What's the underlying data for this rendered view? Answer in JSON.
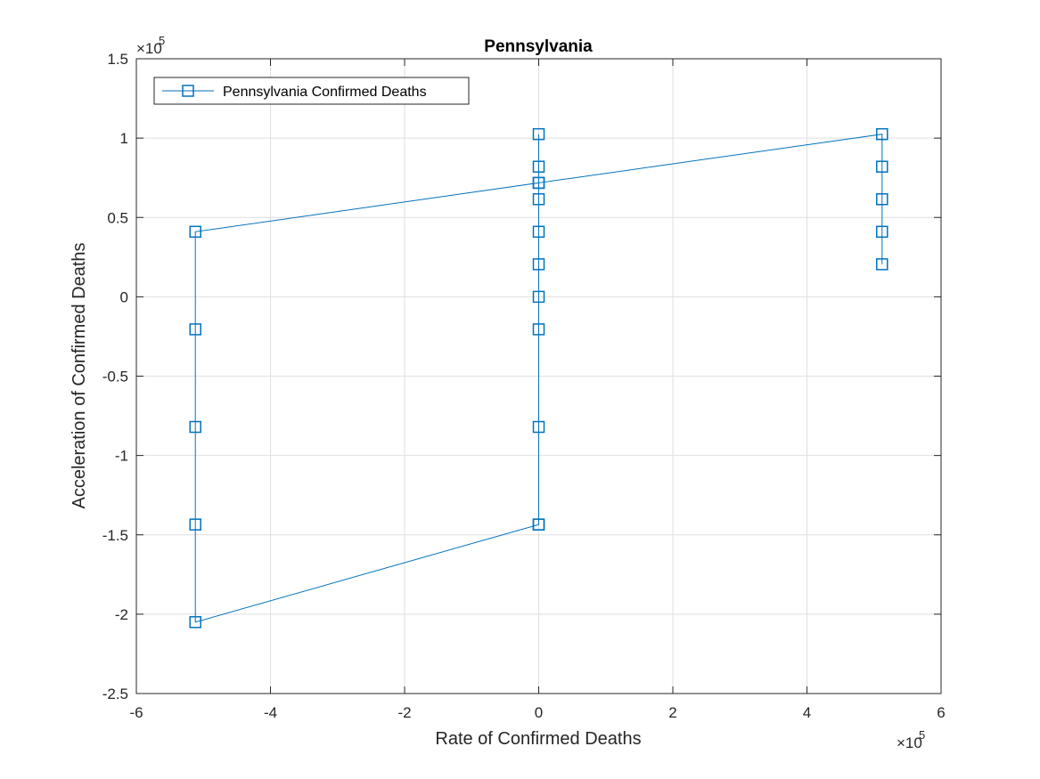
{
  "chart_data": {
    "type": "line",
    "title": "Pennsylvania",
    "xlabel": "Rate of Confirmed Deaths",
    "ylabel": "Acceleration of Confirmed Deaths",
    "x_exponent_base": "×10",
    "x_exponent_power": "5",
    "y_exponent_base": "×10",
    "y_exponent_power": "5",
    "xlim": [
      -6,
      6
    ],
    "ylim": [
      -2.5,
      1.5
    ],
    "xticks": [
      -6,
      -4,
      -2,
      0,
      2,
      4,
      6
    ],
    "xtick_labels": [
      "-6",
      "-4",
      "-2",
      "0",
      "2",
      "4",
      "6"
    ],
    "yticks": [
      -2.5,
      -2,
      -1.5,
      -1,
      -0.5,
      0,
      0.5,
      1,
      1.5
    ],
    "ytick_labels": [
      "-2.5",
      "-2",
      "-1.5",
      "-1",
      "-0.5",
      "0",
      "0.5",
      "1",
      "1.5"
    ],
    "grid": true,
    "legend_position": "top-left",
    "color": "#0072BD",
    "marker": "square",
    "series": [
      {
        "name": "Pennsylvania Confirmed Deaths",
        "x": [
          5.12,
          5.12,
          5.12,
          5.12,
          5.12,
          0,
          0,
          0,
          0,
          0,
          0,
          0,
          0,
          0,
          -5.12,
          -5.12,
          -5.12,
          -5.12,
          -5.12,
          0,
          0,
          0
        ],
        "y": [
          0.205,
          0.41,
          0.615,
          0.82,
          1.025,
          0.718,
          0.615,
          0.41,
          0.205,
          0,
          -0.205,
          -0.82,
          -1.435,
          -1.435,
          -2.05,
          -1.435,
          -0.82,
          -0.205,
          0.41,
          0.718,
          0.82,
          1.025
        ]
      }
    ]
  }
}
